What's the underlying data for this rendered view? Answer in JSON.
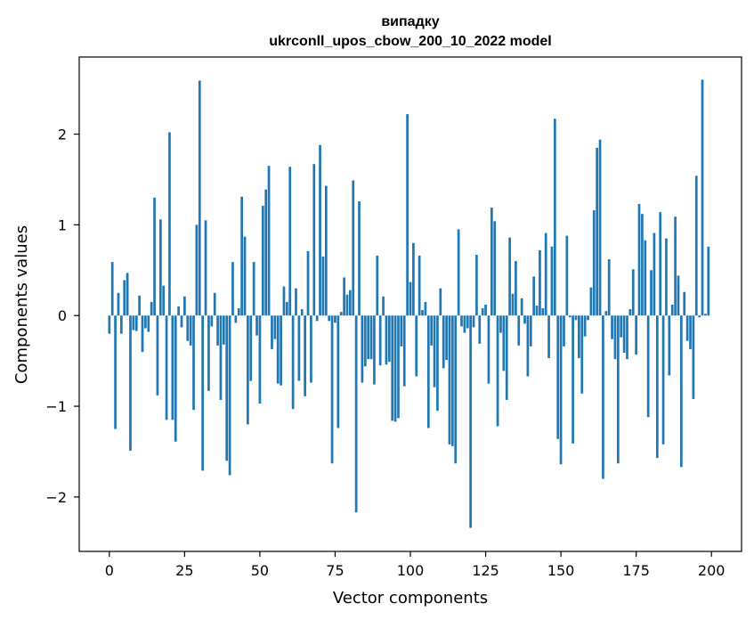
{
  "chart_data": {
    "type": "bar",
    "title_line1": "випадку",
    "title_line2": "ukrconll_upos_cbow_200_10_2022 model",
    "xlabel": "Vector components",
    "ylabel": "Components values",
    "xlim": [
      -10,
      210
    ],
    "ylim": [
      -2.6,
      2.85
    ],
    "xticks": [
      0,
      25,
      50,
      75,
      100,
      125,
      150,
      175,
      200
    ],
    "yticks": [
      -2,
      -1,
      0,
      1,
      2
    ],
    "ytick_labels": [
      "−2",
      "−1",
      "0",
      "1",
      "2"
    ],
    "grid": false,
    "bar_color": "#1f77b4",
    "x": [
      0,
      1,
      2,
      3,
      4,
      5,
      6,
      7,
      8,
      9,
      10,
      11,
      12,
      13,
      14,
      15,
      16,
      17,
      18,
      19,
      20,
      21,
      22,
      23,
      24,
      25,
      26,
      27,
      28,
      29,
      30,
      31,
      32,
      33,
      34,
      35,
      36,
      37,
      38,
      39,
      40,
      41,
      42,
      43,
      44,
      45,
      46,
      47,
      48,
      49,
      50,
      51,
      52,
      53,
      54,
      55,
      56,
      57,
      58,
      59,
      60,
      61,
      62,
      63,
      64,
      65,
      66,
      67,
      68,
      69,
      70,
      71,
      72,
      73,
      74,
      75,
      76,
      77,
      78,
      79,
      80,
      81,
      82,
      83,
      84,
      85,
      86,
      87,
      88,
      89,
      90,
      91,
      92,
      93,
      94,
      95,
      96,
      97,
      98,
      99,
      100,
      101,
      102,
      103,
      104,
      105,
      106,
      107,
      108,
      109,
      110,
      111,
      112,
      113,
      114,
      115,
      116,
      117,
      118,
      119,
      120,
      121,
      122,
      123,
      124,
      125,
      126,
      127,
      128,
      129,
      130,
      131,
      132,
      133,
      134,
      135,
      136,
      137,
      138,
      139,
      140,
      141,
      142,
      143,
      144,
      145,
      146,
      147,
      148,
      149,
      150,
      151,
      152,
      153,
      154,
      155,
      156,
      157,
      158,
      159,
      160,
      161,
      162,
      163,
      164,
      165,
      166,
      167,
      168,
      169,
      170,
      171,
      172,
      173,
      174,
      175,
      176,
      177,
      178,
      179,
      180,
      181,
      182,
      183,
      184,
      185,
      186,
      187,
      188,
      189,
      190,
      191,
      192,
      193,
      194,
      195,
      196,
      197,
      198,
      199
    ],
    "values": [
      -0.2,
      0.59,
      -1.25,
      0.25,
      -0.2,
      0.39,
      0.47,
      -1.49,
      -0.16,
      -0.17,
      0.22,
      -0.4,
      -0.14,
      -0.18,
      0.15,
      1.3,
      -0.88,
      1.06,
      0.33,
      -1.15,
      2.02,
      -1.15,
      -1.39,
      0.1,
      -0.13,
      0.21,
      -0.28,
      -0.33,
      -1.04,
      1.0,
      2.59,
      -1.71,
      1.05,
      -0.83,
      -0.12,
      0.25,
      -0.33,
      -0.93,
      -0.32,
      -1.6,
      -1.76,
      0.59,
      -0.08,
      0.08,
      1.31,
      0.87,
      -1.2,
      -0.72,
      0.59,
      -0.22,
      -0.97,
      1.21,
      1.39,
      1.65,
      -0.37,
      -0.26,
      -0.75,
      -0.77,
      0.32,
      0.15,
      1.64,
      -1.03,
      0.3,
      -0.72,
      0.07,
      -0.89,
      0.71,
      -0.74,
      1.67,
      -0.06,
      1.88,
      0.65,
      1.43,
      -0.06,
      -1.63,
      -0.08,
      -1.24,
      0.04,
      0.42,
      0.23,
      0.28,
      1.49,
      -2.17,
      1.26,
      -0.74,
      -0.56,
      -0.48,
      -0.48,
      -0.76,
      0.66,
      -0.55,
      0.21,
      -0.54,
      -0.51,
      -1.16,
      -1.17,
      -1.13,
      -0.34,
      -0.78,
      2.22,
      0.37,
      0.8,
      -0.67,
      0.66,
      0.06,
      0.15,
      -1.24,
      -0.33,
      -0.79,
      -1.05,
      0.3,
      -0.58,
      -0.49,
      -1.42,
      -1.44,
      -1.63,
      0.95,
      -0.12,
      -0.19,
      -0.14,
      -2.34,
      -0.13,
      0.67,
      -0.31,
      0.08,
      0.12,
      -0.75,
      1.19,
      1.04,
      -1.22,
      -0.19,
      -0.61,
      -0.93,
      0.86,
      0.24,
      0.6,
      -0.33,
      0.19,
      -0.09,
      -0.67,
      -0.34,
      0.43,
      0.11,
      0.72,
      0.08,
      0.91,
      -0.47,
      0.76,
      2.17,
      -1.36,
      -1.64,
      -0.34,
      0.88,
      -0.02,
      -1.41,
      -0.05,
      -0.47,
      -0.86,
      -0.23,
      -0.05,
      0.31,
      1.16,
      1.85,
      1.94,
      -1.8,
      0.05,
      0.62,
      -0.26,
      -0.48,
      -1.63,
      -0.24,
      -0.41,
      -0.48,
      0.07,
      0.51,
      -0.43,
      1.23,
      1.12,
      0.83,
      -1.12,
      0.5,
      0.91,
      -1.57,
      1.14,
      -1.42,
      0.85,
      -0.66,
      0.12,
      1.09,
      0.44,
      -1.67,
      0.26,
      -0.28,
      -0.37,
      -0.92,
      1.54,
      -0.02,
      2.6,
      0.02,
      0.76
    ]
  }
}
